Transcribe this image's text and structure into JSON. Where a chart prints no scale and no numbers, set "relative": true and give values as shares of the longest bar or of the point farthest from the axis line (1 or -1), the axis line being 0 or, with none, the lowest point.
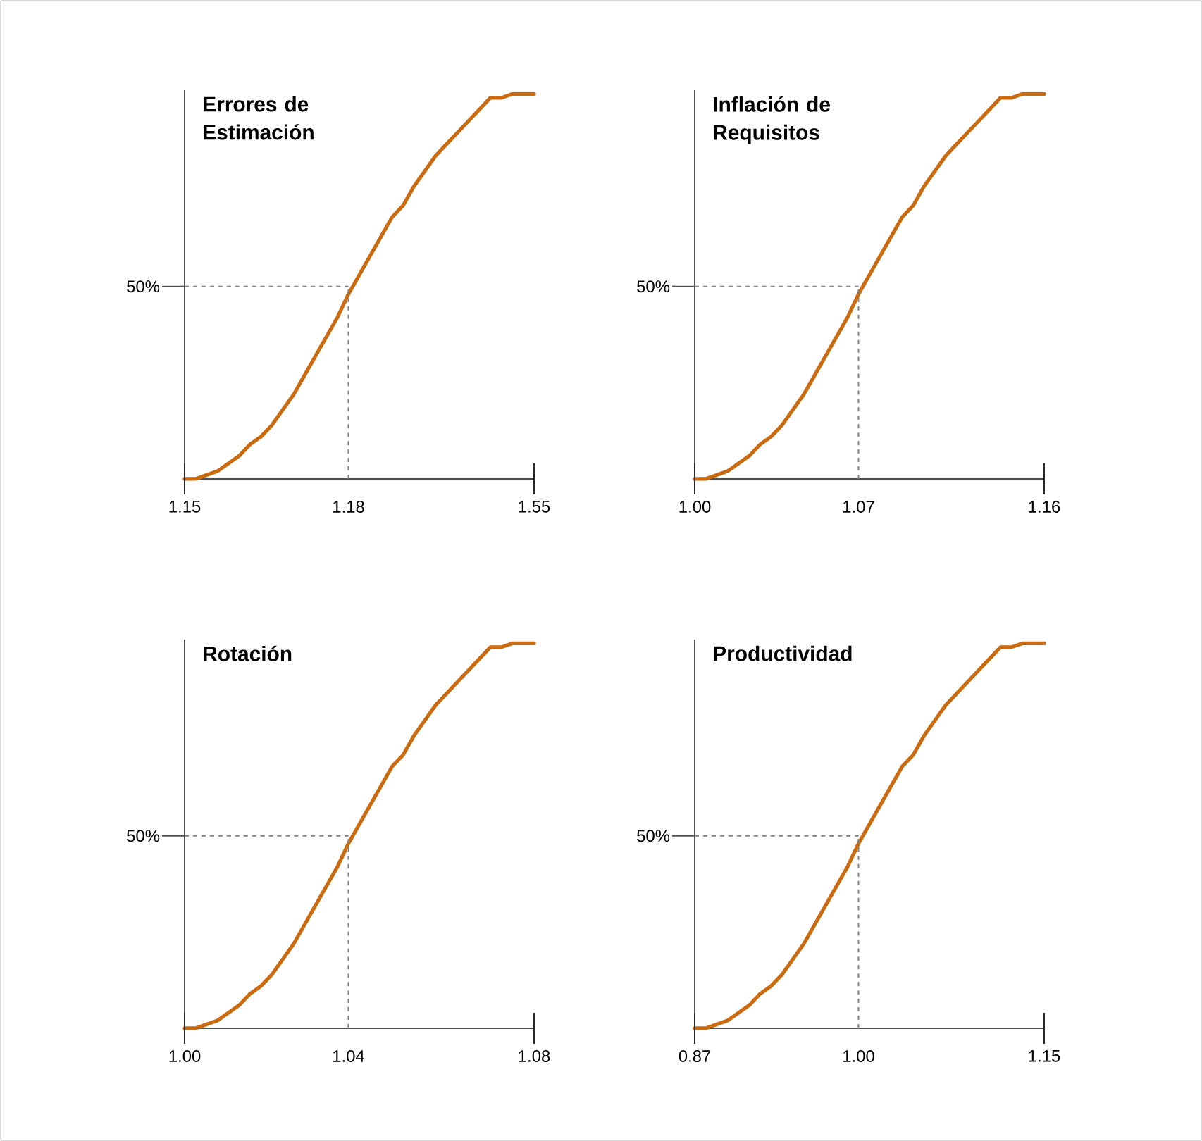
{
  "chart_data": [
    {
      "type": "line",
      "title": "Errores de Estimación",
      "color": "#cc6a10",
      "marker": "none",
      "relative": true,
      "categories": [
        "1.15",
        null,
        null,
        null,
        null,
        null,
        null,
        null,
        null,
        null,
        null,
        null,
        null,
        null,
        null,
        "1.18",
        null,
        null,
        null,
        null,
        null,
        null,
        null,
        null,
        null,
        null,
        null,
        null,
        null,
        null,
        null,
        null,
        "1.55"
      ],
      "values": [
        0,
        0,
        0.01,
        0.02,
        0.04,
        0.06,
        0.09,
        0.11,
        0.14,
        0.18,
        0.22,
        0.27,
        0.32,
        0.37,
        0.42,
        0.48,
        0.53,
        0.58,
        0.63,
        0.68,
        0.71,
        0.76,
        0.8,
        0.84,
        0.87,
        0.9,
        0.93,
        0.96,
        0.99,
        0.99,
        1,
        1,
        1
      ],
      "ref_lines": [
        {
          "axis": "y",
          "value": 0.5,
          "label": "50%",
          "color": "#808080",
          "line_style": "dashed"
        },
        {
          "axis": "x",
          "value": "1.18",
          "color": "#808080",
          "line_style": "dashed"
        }
      ]
    },
    {
      "type": "line",
      "title": "Inflación de Requisitos",
      "color": "#cc6a10",
      "marker": "none",
      "relative": true,
      "categories": [
        "1.00",
        null,
        null,
        null,
        null,
        null,
        null,
        null,
        null,
        null,
        null,
        null,
        null,
        null,
        null,
        "1.07",
        null,
        null,
        null,
        null,
        null,
        null,
        null,
        null,
        null,
        null,
        null,
        null,
        null,
        null,
        null,
        null,
        "1.16"
      ],
      "values": [
        0,
        0,
        0.01,
        0.02,
        0.04,
        0.06,
        0.09,
        0.11,
        0.14,
        0.18,
        0.22,
        0.27,
        0.32,
        0.37,
        0.42,
        0.48,
        0.53,
        0.58,
        0.63,
        0.68,
        0.71,
        0.76,
        0.8,
        0.84,
        0.87,
        0.9,
        0.93,
        0.96,
        0.99,
        0.99,
        1,
        1,
        1
      ],
      "ref_lines": [
        {
          "axis": "y",
          "value": 0.5,
          "label": "50%",
          "color": "#808080",
          "line_style": "dashed"
        },
        {
          "axis": "x",
          "value": "1.07",
          "color": "#808080",
          "line_style": "dashed"
        }
      ]
    },
    {
      "type": "line",
      "title": "Rotación",
      "color": "#cc6a10",
      "marker": "none",
      "relative": true,
      "categories": [
        "1.00",
        null,
        null,
        null,
        null,
        null,
        null,
        null,
        null,
        null,
        null,
        null,
        null,
        null,
        null,
        "1.04",
        null,
        null,
        null,
        null,
        null,
        null,
        null,
        null,
        null,
        null,
        null,
        null,
        null,
        null,
        null,
        null,
        "1.08"
      ],
      "values": [
        0,
        0,
        0.01,
        0.02,
        0.04,
        0.06,
        0.09,
        0.11,
        0.14,
        0.18,
        0.22,
        0.27,
        0.32,
        0.37,
        0.42,
        0.48,
        0.53,
        0.58,
        0.63,
        0.68,
        0.71,
        0.76,
        0.8,
        0.84,
        0.87,
        0.9,
        0.93,
        0.96,
        0.99,
        0.99,
        1,
        1,
        1
      ],
      "ref_lines": [
        {
          "axis": "y",
          "value": 0.5,
          "label": "50%",
          "color": "#808080",
          "line_style": "dashed"
        },
        {
          "axis": "x",
          "value": "1.04",
          "color": "#808080",
          "line_style": "dashed"
        }
      ]
    },
    {
      "type": "line",
      "title": "Productividad",
      "color": "#cc6a10",
      "marker": "none",
      "relative": true,
      "categories": [
        "0.87",
        null,
        null,
        null,
        null,
        null,
        null,
        null,
        null,
        null,
        null,
        null,
        null,
        null,
        null,
        "1.00",
        null,
        null,
        null,
        null,
        null,
        null,
        null,
        null,
        null,
        null,
        null,
        null,
        null,
        null,
        null,
        null,
        "1.15"
      ],
      "values": [
        0,
        0,
        0.01,
        0.02,
        0.04,
        0.06,
        0.09,
        0.11,
        0.14,
        0.18,
        0.22,
        0.27,
        0.32,
        0.37,
        0.42,
        0.48,
        0.53,
        0.58,
        0.63,
        0.68,
        0.71,
        0.76,
        0.8,
        0.84,
        0.87,
        0.9,
        0.93,
        0.96,
        0.99,
        0.99,
        1,
        1,
        1
      ],
      "ref_lines": [
        {
          "axis": "y",
          "value": 0.5,
          "label": "50%",
          "color": "#808080",
          "line_style": "dashed"
        },
        {
          "axis": "x",
          "value": "1.00",
          "color": "#808080",
          "line_style": "dashed"
        }
      ]
    }
  ]
}
